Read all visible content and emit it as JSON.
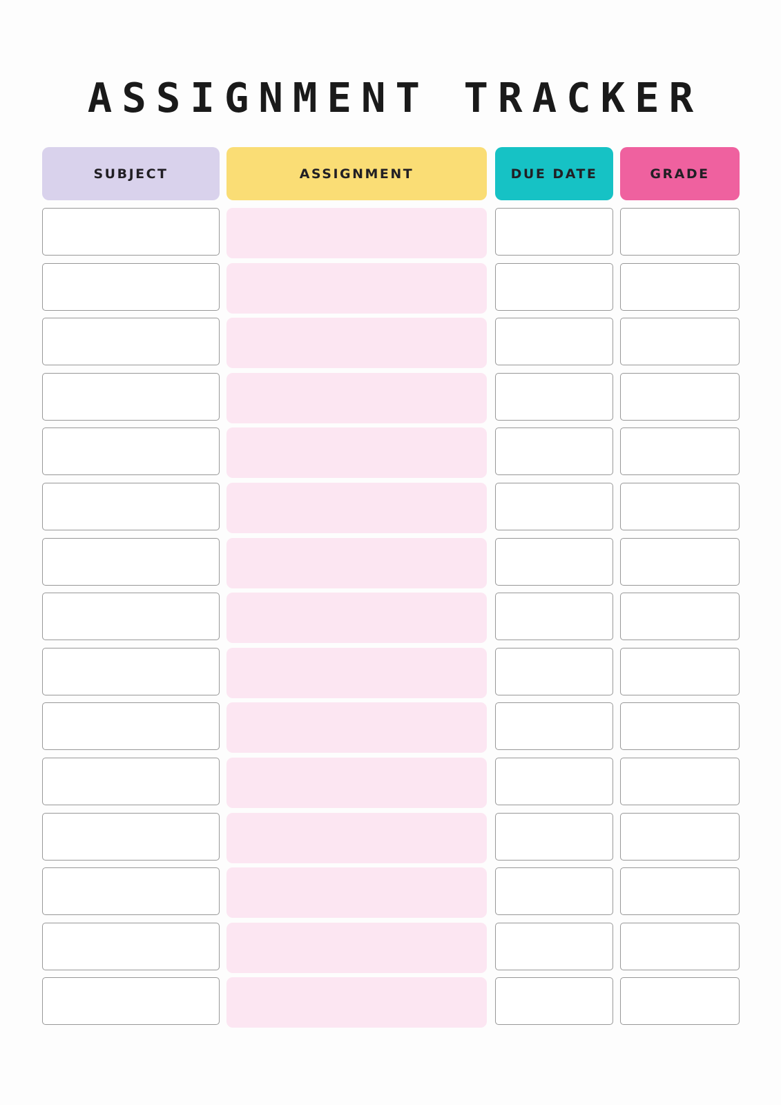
{
  "title": "ASSIGNMENT TRACKER",
  "table": {
    "columns": [
      {
        "id": "subject",
        "label": "SUBJECT",
        "header_color": "#d9d2ec"
      },
      {
        "id": "assignment",
        "label": "ASSIGNMENT",
        "header_color": "#fadd75"
      },
      {
        "id": "due_date",
        "label": "DUE DATE",
        "header_color": "#16c2c5"
      },
      {
        "id": "grade",
        "label": "GRADE",
        "header_color": "#ef619f"
      }
    ],
    "rows": [
      {
        "subject": "",
        "assignment": "",
        "due_date": "",
        "grade": ""
      },
      {
        "subject": "",
        "assignment": "",
        "due_date": "",
        "grade": ""
      },
      {
        "subject": "",
        "assignment": "",
        "due_date": "",
        "grade": ""
      },
      {
        "subject": "",
        "assignment": "",
        "due_date": "",
        "grade": ""
      },
      {
        "subject": "",
        "assignment": "",
        "due_date": "",
        "grade": ""
      },
      {
        "subject": "",
        "assignment": "",
        "due_date": "",
        "grade": ""
      },
      {
        "subject": "",
        "assignment": "",
        "due_date": "",
        "grade": ""
      },
      {
        "subject": "",
        "assignment": "",
        "due_date": "",
        "grade": ""
      },
      {
        "subject": "",
        "assignment": "",
        "due_date": "",
        "grade": ""
      },
      {
        "subject": "",
        "assignment": "",
        "due_date": "",
        "grade": ""
      },
      {
        "subject": "",
        "assignment": "",
        "due_date": "",
        "grade": ""
      },
      {
        "subject": "",
        "assignment": "",
        "due_date": "",
        "grade": ""
      },
      {
        "subject": "",
        "assignment": "",
        "due_date": "",
        "grade": ""
      },
      {
        "subject": "",
        "assignment": "",
        "due_date": "",
        "grade": ""
      },
      {
        "subject": "",
        "assignment": "",
        "due_date": "",
        "grade": ""
      }
    ]
  },
  "colors": {
    "page_background": "#fdfdfd",
    "title_text": "#1a1a1a",
    "header_text": "#211f24",
    "assignment_cell_fill": "#fce6f2",
    "empty_cell_fill": "#ffffff",
    "empty_cell_border": "#979797"
  }
}
